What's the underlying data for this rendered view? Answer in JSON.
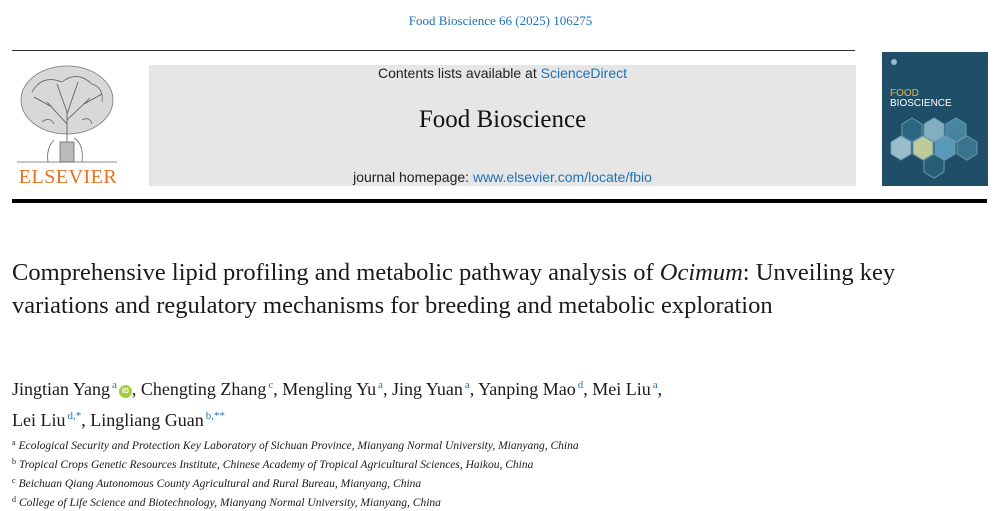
{
  "citation": "Food Bioscience 66 (2025) 106275",
  "publisher": {
    "name": "ELSEVIER"
  },
  "journal_box": {
    "contents_prefix": "Contents lists available at ",
    "contents_link": "ScienceDirect",
    "title": "Food Bioscience",
    "homepage_prefix": "journal homepage: ",
    "homepage_link": "www.elsevier.com/locate/fbio"
  },
  "cover": {
    "line1": "FOOD",
    "line2": "BIOSCIENCE"
  },
  "article": {
    "title_part1": "Comprehensive lipid profiling and metabolic pathway analysis of ",
    "title_italic": "Ocimum",
    "title_part2": ": Unveiling key variations and regulatory mechanisms for breeding and metabolic exploration"
  },
  "authors": [
    {
      "name": "Jingtian Yang",
      "sup": "a",
      "orcid": true,
      "sep": ", "
    },
    {
      "name": "Chengting Zhang",
      "sup": "c",
      "orcid": false,
      "sep": ", "
    },
    {
      "name": "Mengling Yu",
      "sup": "a",
      "orcid": false,
      "sep": ", "
    },
    {
      "name": "Jing Yuan",
      "sup": "a",
      "orcid": false,
      "sep": ", "
    },
    {
      "name": "Yanping Mao",
      "sup": "d",
      "orcid": false,
      "sep": ", "
    },
    {
      "name": "Mei Liu",
      "sup": "a",
      "orcid": false,
      "sep": ", "
    },
    {
      "name": "Lei Liu",
      "sup": "d,*",
      "orcid": false,
      "sep": ", "
    },
    {
      "name": "Lingliang Guan",
      "sup": "b,**",
      "orcid": false,
      "sep": ""
    }
  ],
  "orcid_label": "iD",
  "affiliations": [
    {
      "mark": "a",
      "text": "Ecological Security and Protection Key Laboratory of Sichuan Province, Mianyang Normal University, Mianyang, China"
    },
    {
      "mark": "b",
      "text": "Tropical Crops Genetic Resources Institute, Chinese Academy of Tropical Agricultural Sciences, Haikou, China"
    },
    {
      "mark": "c",
      "text": "Beichuan Qiang Autonomous County Agricultural and Rural Bureau, Mianyang, China"
    },
    {
      "mark": "d",
      "text": "College of Life Science and Biotechnology, Mianyang Normal University, Mianyang, China"
    }
  ],
  "colors": {
    "link": "#1f72b8",
    "elsevier_orange": "#e9711c",
    "orcid_green": "#a6ce39",
    "cover_bg": "#1f4f68"
  }
}
